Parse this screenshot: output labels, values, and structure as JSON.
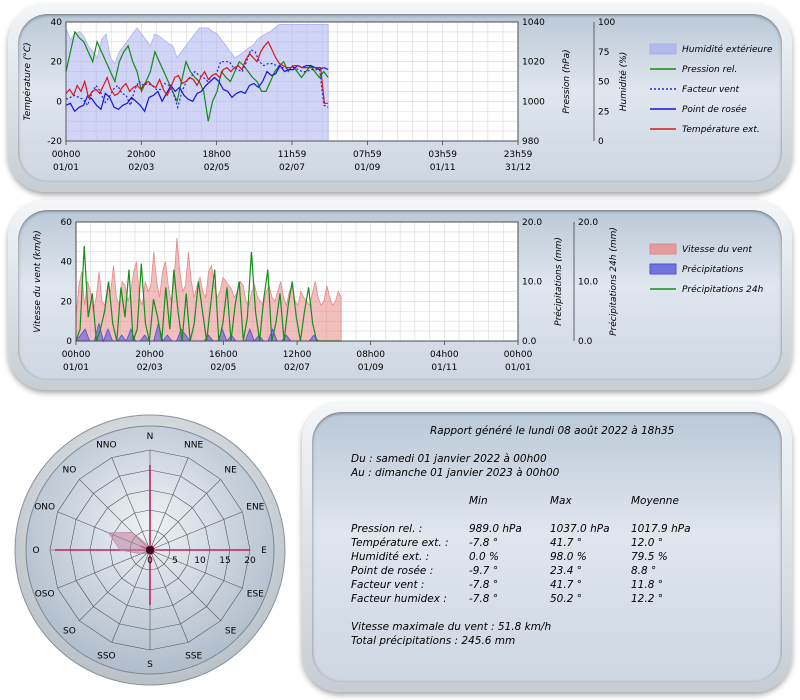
{
  "chart_data": [
    {
      "type": "line",
      "x_tick_labels": [
        [
          "00h00",
          "01/01"
        ],
        [
          "20h00",
          "02/03"
        ],
        [
          "18h00",
          "02/05"
        ],
        [
          "11h59",
          "02/07"
        ],
        [
          "07h59",
          "01/09"
        ],
        [
          "03h59",
          "01/11"
        ],
        [
          "23h59",
          "31/12"
        ]
      ],
      "y_left": {
        "label": "Température (°C)",
        "ylim": [
          -20,
          40
        ],
        "ticks": [
          "-20",
          "0",
          "20",
          "40"
        ]
      },
      "y_right1": {
        "label": "Pression (hPa)",
        "ylim": [
          980,
          1040
        ],
        "ticks": [
          "980",
          "1000",
          "1020",
          "1040"
        ]
      },
      "y_right2": {
        "label": "Humidité (%)",
        "ylim": [
          0,
          100
        ],
        "ticks": [
          "0",
          "25",
          "50",
          "75",
          "100"
        ]
      },
      "grid": true,
      "legend_position": "right",
      "series": [
        {
          "name": "Humidité extérieure",
          "type": "area",
          "axis": "humidity",
          "color": "#aab0ee",
          "values": [
            95,
            85,
            90,
            92,
            88,
            80,
            75,
            70,
            85,
            90,
            70,
            65,
            75,
            80,
            85,
            90,
            95,
            90,
            85,
            80,
            90,
            88,
            85,
            82,
            80,
            70,
            75,
            80,
            85,
            90,
            95,
            95,
            95,
            92,
            90,
            85,
            80,
            75,
            70,
            72,
            75,
            78,
            80,
            85,
            88,
            90,
            92,
            95,
            98,
            98,
            98,
            98,
            98,
            98,
            98,
            98,
            98,
            98,
            98,
            98
          ]
        },
        {
          "name": "Pression rel.",
          "type": "line",
          "axis": "pressure",
          "color": "#138a13",
          "values": [
            1015,
            1025,
            1035,
            1032,
            1030,
            1025,
            1020,
            1030,
            1025,
            1020,
            1015,
            1010,
            1020,
            1025,
            1028,
            1020,
            1015,
            1005,
            1010,
            1015,
            1025,
            1020,
            1015,
            1010,
            1005,
            1000,
            1010,
            1020,
            1015,
            1012,
            1010,
            1005,
            990,
            1000,
            1005,
            1015,
            1012,
            1010,
            1015,
            1020,
            1018,
            1015,
            1012,
            1010,
            1005,
            1005,
            1010,
            1015,
            1018,
            1020,
            1015,
            1018,
            1015,
            1012,
            1015,
            1018,
            1015,
            1012,
            1015,
            1012
          ]
        },
        {
          "name": "Facteur vent",
          "type": "line",
          "axis": "temperature",
          "color": "#2028d0",
          "dashed": true,
          "values": [
            1,
            2,
            3,
            2,
            1,
            -2,
            4,
            8,
            5,
            -1,
            2,
            6,
            8,
            4,
            3,
            -2,
            6,
            10,
            8,
            9,
            8,
            6,
            6,
            9,
            8,
            4,
            -3,
            5,
            10,
            12,
            15,
            13,
            12,
            10,
            13,
            14,
            20,
            20,
            20,
            17,
            16,
            15,
            20,
            26,
            25,
            20,
            18,
            19,
            19,
            18,
            17,
            17,
            16,
            17,
            16,
            15,
            15,
            16,
            16,
            16,
            -2,
            -3
          ]
        },
        {
          "name": "Point de rosée",
          "type": "line",
          "axis": "temperature",
          "color": "#1414e0",
          "values": [
            -2,
            -1,
            -5,
            -3,
            -2,
            3,
            1,
            -2,
            -4,
            4,
            2,
            -3,
            -4,
            -2,
            -1,
            2,
            0,
            -2,
            -5,
            2,
            3,
            5,
            0,
            4,
            8,
            5,
            7,
            3,
            1,
            0,
            4,
            5,
            8,
            10,
            12,
            10,
            6,
            5,
            2,
            4,
            5,
            4,
            8,
            9,
            7,
            10,
            15,
            13,
            14,
            18,
            15,
            16,
            16,
            18,
            17,
            18,
            18,
            17,
            16,
            17,
            16
          ]
        },
        {
          "name": "Température ext.",
          "type": "line",
          "axis": "temperature",
          "color": "#d81818",
          "values": [
            4,
            6,
            3,
            8,
            5,
            10,
            2,
            5,
            6,
            4,
            8,
            12,
            6,
            3,
            4,
            7,
            9,
            5,
            7,
            8,
            6,
            9,
            10,
            8,
            7,
            11,
            6,
            3,
            7,
            12,
            13,
            9,
            10,
            12,
            11,
            8,
            12,
            15,
            11,
            13,
            14,
            12,
            16,
            17,
            15,
            17,
            18,
            16,
            21,
            24,
            22,
            20,
            25,
            28,
            30,
            26,
            22,
            19,
            18,
            17,
            17,
            18,
            18,
            17,
            17,
            17,
            17,
            17,
            17,
            -1,
            -1
          ]
        }
      ]
    },
    {
      "type": "area",
      "x_tick_labels": [
        [
          "00h00",
          "01/01"
        ],
        [
          "20h00",
          "02/03"
        ],
        [
          "16h00",
          "02/05"
        ],
        [
          "12h00",
          "02/07"
        ],
        [
          "08h00",
          "01/09"
        ],
        [
          "04h00",
          "01/11"
        ],
        [
          "00h00",
          "01/01"
        ]
      ],
      "y_left": {
        "label": "Vitesse du vent (km/h)",
        "ylim": [
          0,
          60
        ],
        "ticks": [
          "0",
          "20",
          "40",
          "60"
        ]
      },
      "y_right1": {
        "label": "Précipitations (mm)",
        "ylim": [
          0,
          20
        ],
        "ticks": [
          "0.0",
          "10.0",
          "20.0"
        ]
      },
      "y_right2": {
        "label": "Précipitations 24h (mm)",
        "ylim": [
          0,
          20
        ],
        "ticks": [
          "0.0",
          "10.0",
          "20.0"
        ]
      },
      "grid": true,
      "legend_position": "right",
      "series": [
        {
          "name": "Vitesse du vent",
          "type": "area",
          "axis": "wind",
          "color": "#e88888",
          "values": [
            12,
            28,
            35,
            18,
            30,
            25,
            15,
            22,
            35,
            20,
            18,
            28,
            25,
            38,
            22,
            18,
            30,
            28,
            20,
            25,
            35,
            40,
            22,
            18,
            30,
            25,
            28,
            45,
            30,
            22,
            35,
            40,
            28,
            20,
            30,
            52,
            35,
            25,
            28,
            45,
            30,
            22,
            28,
            32,
            25,
            22,
            35,
            38,
            28,
            22,
            25,
            32,
            30,
            28,
            26,
            22,
            25,
            30,
            28,
            20,
            18,
            25,
            28,
            22,
            20,
            18,
            25,
            28,
            22,
            20,
            25,
            30,
            22,
            18,
            25,
            28,
            20,
            18,
            25,
            22,
            20,
            18,
            24,
            30,
            22,
            18,
            20,
            28,
            22,
            18,
            20,
            25,
            22
          ]
        },
        {
          "name": "Précipitations",
          "type": "area",
          "axis": "precip",
          "color": "#5050d8",
          "values": [
            0,
            1,
            2,
            0,
            0,
            3,
            0,
            2,
            0,
            0,
            1,
            0,
            2,
            0,
            0,
            1,
            0,
            0,
            3,
            0,
            1,
            0,
            0,
            2,
            1,
            0,
            0,
            0,
            0,
            1,
            0,
            0,
            2,
            0,
            1,
            0,
            0,
            0,
            2,
            0,
            1,
            0,
            0,
            2,
            0,
            0,
            1,
            0,
            0,
            0,
            0,
            0,
            1,
            0,
            0,
            0,
            0,
            0,
            0
          ]
        },
        {
          "name": "Précipitations 24h",
          "type": "line",
          "axis": "precip24",
          "color": "#12901a",
          "values": [
            0,
            2,
            16,
            4,
            8,
            0,
            2,
            5,
            10,
            3,
            0,
            9,
            4,
            12,
            0,
            2,
            13,
            3,
            0,
            7,
            4,
            0,
            9,
            2,
            12,
            5,
            0,
            8,
            0,
            3,
            10,
            5,
            0,
            6,
            12,
            0,
            3,
            9,
            0,
            6,
            10,
            0,
            4,
            15,
            5,
            0,
            7,
            12,
            0,
            3,
            8,
            0,
            6,
            10,
            4,
            0,
            5,
            9,
            3,
            0,
            0,
            0,
            0,
            0,
            0,
            0
          ]
        }
      ]
    },
    {
      "type": "radar",
      "title": "",
      "categories": [
        "N",
        "NNE",
        "NE",
        "ENE",
        "E",
        "ESE",
        "SE",
        "SSE",
        "S",
        "SSO",
        "SO",
        "OSO",
        "O",
        "ONO",
        "NO",
        "NNO"
      ],
      "radial_ticks": [
        "0",
        "5",
        "10",
        "15",
        "20"
      ],
      "rlim": [
        0,
        20
      ],
      "series": [
        {
          "name": "",
          "color": "#c02060",
          "values": [
            17,
            1,
            1,
            1,
            20,
            1,
            1,
            1,
            11,
            1,
            1,
            1,
            19,
            2,
            1,
            1
          ]
        },
        {
          "name": "",
          "color": "#c080a0",
          "fill": true,
          "values": [
            1,
            0.5,
            0.5,
            0.5,
            1,
            0.5,
            0.5,
            0.5,
            1,
            1,
            1,
            2,
            6,
            9,
            5,
            1
          ]
        }
      ]
    }
  ],
  "report": {
    "title": "Rapport généré le lundi 08 août 2022 à 18h35",
    "from": "Du : samedi 01 janvier 2022 à 00h00",
    "to": "Au : dimanche 01 janvier 2023 à 00h00",
    "headers": [
      "Min",
      "Max",
      "Moyenne"
    ],
    "rows": [
      {
        "label": "Pression rel. :",
        "min": "989.0 hPa",
        "max": "1037.0 hPa",
        "avg": "1017.9 hPa"
      },
      {
        "label": "Température ext. :",
        "min": "-7.8 °",
        "max": "41.7 °",
        "avg": "12.0 °"
      },
      {
        "label": "Humidité ext. :",
        "min": "0.0 %",
        "max": "98.0 %",
        "avg": "79.5 %"
      },
      {
        "label": "Point de rosée :",
        "min": "-9.7 °",
        "max": "23.4 °",
        "avg": "8.8 °"
      },
      {
        "label": "Facteur vent :",
        "min": "-7.8 °",
        "max": "41.7 °",
        "avg": "11.8 °"
      },
      {
        "label": "Facteur humidex :",
        "min": "-7.8 °",
        "max": "50.2 °",
        "avg": "12.2 °"
      }
    ],
    "max_wind": "Vitesse maximale du vent : 51.8 km/h",
    "total_precip": "Total précipitations : 245.6 mm"
  }
}
